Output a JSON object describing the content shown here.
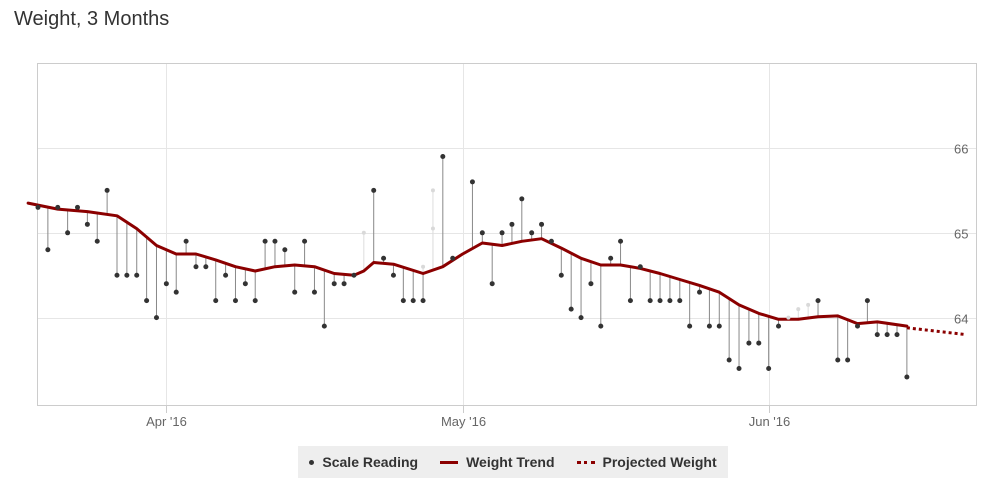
{
  "title": "Weight, 3 Months",
  "legend": {
    "scale": "Scale Reading",
    "trend": "Weight Trend",
    "projected": "Projected Weight"
  },
  "colors": {
    "trend": "#8b0000",
    "reading": "#333333",
    "grid": "#e6e6e6",
    "faded_reading": "#d9d9d9"
  },
  "chart_data": {
    "type": "line",
    "title": "Weight, 3 Months",
    "x_tick_labels": [
      {
        "date": "2016-04-01",
        "label": "Apr '16"
      },
      {
        "date": "2016-05-01",
        "label": "May '16"
      },
      {
        "date": "2016-06-01",
        "label": "Jun '16"
      }
    ],
    "y_ticks": [
      64,
      65,
      66
    ],
    "xlim": [
      "2016-03-19",
      "2016-06-22"
    ],
    "ylim": [
      62.97,
      66.99
    ],
    "grid": true,
    "y_axis_side": "right",
    "legend_placement": "bottom-center",
    "series": [
      {
        "name": "Scale Reading",
        "type": "scatter",
        "points": [
          [
            "2016-03-19",
            65.3
          ],
          [
            "2016-03-20",
            64.8
          ],
          [
            "2016-03-21",
            65.3
          ],
          [
            "2016-03-22",
            65.0
          ],
          [
            "2016-03-23",
            65.3
          ],
          [
            "2016-03-24",
            65.1
          ],
          [
            "2016-03-25",
            64.9
          ],
          [
            "2016-03-26",
            65.5
          ],
          [
            "2016-03-27",
            64.5
          ],
          [
            "2016-03-28",
            64.5
          ],
          [
            "2016-03-29",
            64.5
          ],
          [
            "2016-03-30",
            64.2
          ],
          [
            "2016-03-31",
            64.0
          ],
          [
            "2016-04-01",
            64.4
          ],
          [
            "2016-04-02",
            64.3
          ],
          [
            "2016-04-03",
            64.9
          ],
          [
            "2016-04-04",
            64.6
          ],
          [
            "2016-04-05",
            64.6
          ],
          [
            "2016-04-06",
            64.2
          ],
          [
            "2016-04-07",
            64.5
          ],
          [
            "2016-04-08",
            64.2
          ],
          [
            "2016-04-09",
            64.4
          ],
          [
            "2016-04-10",
            64.2
          ],
          [
            "2016-04-11",
            64.9
          ],
          [
            "2016-04-12",
            64.9
          ],
          [
            "2016-04-13",
            64.8
          ],
          [
            "2016-04-14",
            64.3
          ],
          [
            "2016-04-15",
            64.9
          ],
          [
            "2016-04-16",
            64.3
          ],
          [
            "2016-04-17",
            63.9
          ],
          [
            "2016-04-18",
            64.4
          ],
          [
            "2016-04-19",
            64.4
          ],
          [
            "2016-04-20",
            64.5
          ],
          [
            "2016-04-22",
            65.5
          ],
          [
            "2016-04-23",
            64.7
          ],
          [
            "2016-04-24",
            64.5
          ],
          [
            "2016-04-25",
            64.2
          ],
          [
            "2016-04-26",
            64.2
          ],
          [
            "2016-04-27",
            64.2
          ],
          [
            "2016-04-29",
            65.9
          ],
          [
            "2016-04-30",
            64.7
          ],
          [
            "2016-05-02",
            65.6
          ],
          [
            "2016-05-03",
            65.0
          ],
          [
            "2016-05-04",
            64.4
          ],
          [
            "2016-05-05",
            65.0
          ],
          [
            "2016-05-06",
            65.1
          ],
          [
            "2016-05-07",
            65.4
          ],
          [
            "2016-05-08",
            65.0
          ],
          [
            "2016-05-09",
            65.1
          ],
          [
            "2016-05-10",
            64.9
          ],
          [
            "2016-05-11",
            64.5
          ],
          [
            "2016-05-12",
            64.1
          ],
          [
            "2016-05-13",
            64.0
          ],
          [
            "2016-05-14",
            64.4
          ],
          [
            "2016-05-15",
            63.9
          ],
          [
            "2016-05-16",
            64.7
          ],
          [
            "2016-05-17",
            64.9
          ],
          [
            "2016-05-18",
            64.2
          ],
          [
            "2016-05-19",
            64.6
          ],
          [
            "2016-05-20",
            64.2
          ],
          [
            "2016-05-21",
            64.2
          ],
          [
            "2016-05-22",
            64.2
          ],
          [
            "2016-05-23",
            64.2
          ],
          [
            "2016-05-24",
            63.9
          ],
          [
            "2016-05-25",
            64.3
          ],
          [
            "2016-05-26",
            63.9
          ],
          [
            "2016-05-27",
            63.9
          ],
          [
            "2016-05-28",
            63.5
          ],
          [
            "2016-05-29",
            63.4
          ],
          [
            "2016-05-30",
            63.7
          ],
          [
            "2016-05-31",
            63.7
          ],
          [
            "2016-06-01",
            63.4
          ],
          [
            "2016-06-02",
            63.9
          ],
          [
            "2016-06-06",
            64.2
          ],
          [
            "2016-06-08",
            63.5
          ],
          [
            "2016-06-09",
            63.5
          ],
          [
            "2016-06-10",
            63.9
          ],
          [
            "2016-06-11",
            64.2
          ],
          [
            "2016-06-12",
            63.8
          ],
          [
            "2016-06-13",
            63.8
          ],
          [
            "2016-06-14",
            63.8
          ],
          [
            "2016-06-15",
            63.3
          ]
        ],
        "faded_points": [
          [
            "2016-04-21",
            65.0
          ],
          [
            "2016-04-28",
            65.5
          ],
          [
            "2016-04-27",
            64.6
          ],
          [
            "2016-04-28",
            65.05
          ],
          [
            "2016-06-03",
            64.0
          ],
          [
            "2016-06-04",
            64.1
          ],
          [
            "2016-06-05",
            64.15
          ]
        ]
      },
      {
        "name": "Weight Trend",
        "type": "line",
        "points": [
          [
            "2016-03-18",
            65.35
          ],
          [
            "2016-03-21",
            65.28
          ],
          [
            "2016-03-24",
            65.25
          ],
          [
            "2016-03-27",
            65.2
          ],
          [
            "2016-03-29",
            65.05
          ],
          [
            "2016-03-31",
            64.85
          ],
          [
            "2016-04-02",
            64.75
          ],
          [
            "2016-04-04",
            64.75
          ],
          [
            "2016-04-06",
            64.68
          ],
          [
            "2016-04-08",
            64.6
          ],
          [
            "2016-04-10",
            64.55
          ],
          [
            "2016-04-12",
            64.6
          ],
          [
            "2016-04-14",
            64.62
          ],
          [
            "2016-04-16",
            64.6
          ],
          [
            "2016-04-18",
            64.52
          ],
          [
            "2016-04-20",
            64.5
          ],
          [
            "2016-04-21",
            64.55
          ],
          [
            "2016-04-22",
            64.65
          ],
          [
            "2016-04-24",
            64.63
          ],
          [
            "2016-04-27",
            64.52
          ],
          [
            "2016-04-29",
            64.6
          ],
          [
            "2016-05-01",
            64.75
          ],
          [
            "2016-05-03",
            64.88
          ],
          [
            "2016-05-05",
            64.85
          ],
          [
            "2016-05-07",
            64.9
          ],
          [
            "2016-05-09",
            64.93
          ],
          [
            "2016-05-11",
            64.82
          ],
          [
            "2016-05-13",
            64.7
          ],
          [
            "2016-05-15",
            64.62
          ],
          [
            "2016-05-17",
            64.62
          ],
          [
            "2016-05-19",
            64.58
          ],
          [
            "2016-05-21",
            64.52
          ],
          [
            "2016-05-23",
            64.45
          ],
          [
            "2016-05-25",
            64.38
          ],
          [
            "2016-05-27",
            64.3
          ],
          [
            "2016-05-29",
            64.15
          ],
          [
            "2016-05-31",
            64.05
          ],
          [
            "2016-06-02",
            63.98
          ],
          [
            "2016-06-04",
            63.98
          ],
          [
            "2016-06-06",
            64.01
          ],
          [
            "2016-06-08",
            64.02
          ],
          [
            "2016-06-10",
            63.93
          ],
          [
            "2016-06-12",
            63.95
          ],
          [
            "2016-06-15",
            63.9
          ]
        ]
      },
      {
        "name": "Projected Weight",
        "type": "line",
        "dashed": true,
        "points": [
          [
            "2016-06-15",
            63.88
          ],
          [
            "2016-06-21",
            63.8
          ]
        ]
      }
    ]
  }
}
